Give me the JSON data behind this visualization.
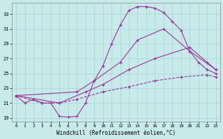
{
  "xlabel": "Windchill (Refroidissement éolien,°C)",
  "bg_color": "#c8eaea",
  "grid_color": "#a8d4d4",
  "line_color": "#993399",
  "xlim": [
    -0.5,
    23.5
  ],
  "ylim": [
    18.5,
    34.5
  ],
  "yticks": [
    19,
    21,
    23,
    25,
    27,
    29,
    31,
    33
  ],
  "xticks": [
    0,
    1,
    2,
    3,
    4,
    5,
    6,
    7,
    8,
    9,
    10,
    11,
    12,
    13,
    14,
    15,
    16,
    17,
    18,
    19,
    20,
    21,
    22,
    23
  ],
  "curves": [
    {
      "x": [
        0,
        1,
        2,
        3,
        4,
        5,
        6,
        7,
        8,
        9,
        10,
        11,
        12,
        13,
        14,
        15,
        16,
        17,
        18,
        19,
        20,
        21,
        22,
        23
      ],
      "y": [
        22.0,
        21.0,
        21.5,
        21.0,
        21.0,
        19.2,
        19.1,
        19.2,
        21.0,
        24.0,
        26.0,
        29.0,
        31.5,
        33.5,
        34.0,
        34.0,
        33.8,
        33.2,
        32.0,
        30.8,
        28.0,
        26.5,
        25.5,
        25.0
      ],
      "dashed": false
    },
    {
      "x": [
        0,
        7,
        9,
        12,
        14,
        17,
        20,
        23
      ],
      "y": [
        22.0,
        22.5,
        24.0,
        26.5,
        29.5,
        31.0,
        28.0,
        25.5
      ],
      "dashed": false
    },
    {
      "x": [
        0,
        5,
        8,
        10,
        13,
        16,
        20,
        22,
        23
      ],
      "y": [
        22.0,
        21.0,
        22.5,
        23.5,
        25.5,
        27.0,
        28.5,
        26.5,
        25.5
      ],
      "dashed": false
    },
    {
      "x": [
        0,
        3,
        5,
        7,
        10,
        13,
        16,
        19,
        22,
        23
      ],
      "y": [
        22.0,
        21.0,
        21.0,
        21.5,
        22.5,
        23.2,
        24.0,
        24.5,
        24.8,
        24.5
      ],
      "dashed": true
    }
  ]
}
